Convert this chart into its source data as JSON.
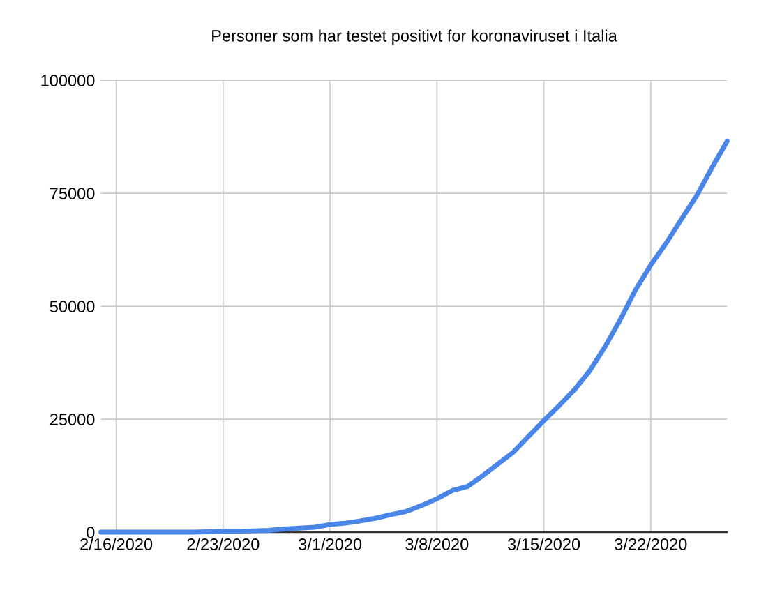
{
  "chart_data": {
    "type": "line",
    "title": "Personer som har testet positivt for koronaviruset i Italia",
    "x": [
      "2020-02-15",
      "2020-02-16",
      "2020-02-17",
      "2020-02-18",
      "2020-02-19",
      "2020-02-20",
      "2020-02-21",
      "2020-02-22",
      "2020-02-23",
      "2020-02-24",
      "2020-02-25",
      "2020-02-26",
      "2020-02-27",
      "2020-02-28",
      "2020-02-29",
      "2020-03-01",
      "2020-03-02",
      "2020-03-03",
      "2020-03-04",
      "2020-03-05",
      "2020-03-06",
      "2020-03-07",
      "2020-03-08",
      "2020-03-09",
      "2020-03-10",
      "2020-03-11",
      "2020-03-12",
      "2020-03-13",
      "2020-03-14",
      "2020-03-15",
      "2020-03-16",
      "2020-03-17",
      "2020-03-18",
      "2020-03-19",
      "2020-03-20",
      "2020-03-21",
      "2020-03-22",
      "2020-03-23",
      "2020-03-24",
      "2020-03-25",
      "2020-03-26",
      "2020-03-27"
    ],
    "series": [
      {
        "color": "#4a86e8",
        "values": [
          0,
          0,
          0,
          0,
          0,
          0,
          0,
          100,
          200,
          200,
          300,
          400,
          700,
          900,
          1100,
          1700,
          2000,
          2500,
          3100,
          3900,
          4600,
          5900,
          7400,
          9200,
          10100,
          12500,
          15100,
          17700,
          21200,
          24700,
          28000,
          31500,
          35700,
          41000,
          47000,
          53600,
          59100,
          63900,
          69200,
          74400,
          80600,
          86500
        ]
      }
    ],
    "xlim": [
      "2020-02-15",
      "2020-03-27"
    ],
    "xticks": [
      {
        "value": "2020-02-16",
        "label": "2/16/2020"
      },
      {
        "value": "2020-02-23",
        "label": "2/23/2020"
      },
      {
        "value": "2020-03-01",
        "label": "3/1/2020"
      },
      {
        "value": "2020-03-08",
        "label": "3/8/2020"
      },
      {
        "value": "2020-03-15",
        "label": "3/15/2020"
      },
      {
        "value": "2020-03-22",
        "label": "3/22/2020"
      }
    ],
    "ylim": [
      0,
      100000
    ],
    "yticks": [
      0,
      25000,
      50000,
      75000,
      100000
    ],
    "grid": true,
    "line_style": "solid",
    "marker": "none"
  }
}
